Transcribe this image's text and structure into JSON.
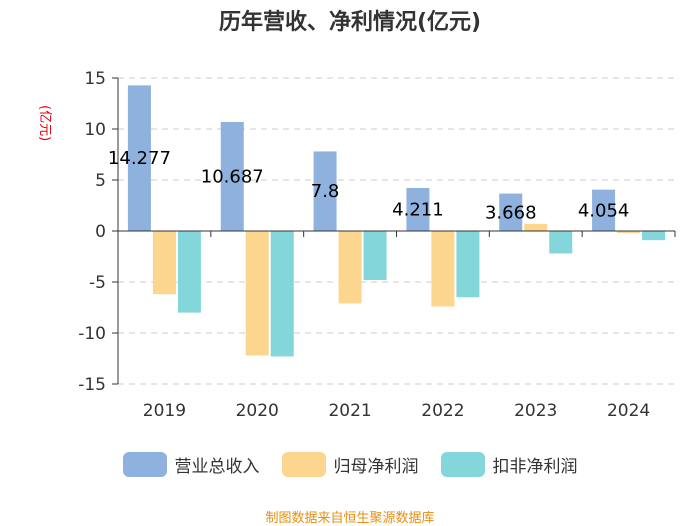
{
  "colors": {
    "revenue": "#8eb1de",
    "net_profit": "#fcd58f",
    "deducted_profit": "#83d6da",
    "unit": "#e60012",
    "source": "#e88e0c",
    "grid": "#cccccc",
    "axis": "#333333"
  },
  "chart_data": {
    "type": "bar",
    "title": "历年营收、净利情况(亿元)",
    "ylabel": "(亿元)",
    "ylim": [
      -15,
      15
    ],
    "yticks": [
      15,
      10,
      5,
      0,
      -5,
      -10,
      -15
    ],
    "categories": [
      "2019",
      "2020",
      "2021",
      "2022",
      "2023",
      "2024"
    ],
    "series": [
      {
        "name": "营业总收入",
        "values": [
          14.277,
          10.687,
          7.8,
          4.211,
          3.668,
          4.054
        ]
      },
      {
        "name": "归母净利润",
        "values": [
          -6.2,
          -12.2,
          -7.1,
          -7.4,
          0.7,
          -0.2
        ]
      },
      {
        "name": "扣非净利润",
        "values": [
          -8.0,
          -12.3,
          -4.8,
          -6.5,
          -2.2,
          -0.9
        ]
      }
    ],
    "data_labels": [
      "14.277",
      "10.687",
      "7.8",
      "4.211",
      "3.668",
      "4.054"
    ],
    "grid": true
  },
  "source": "制图数据来自恒生聚源数据库"
}
